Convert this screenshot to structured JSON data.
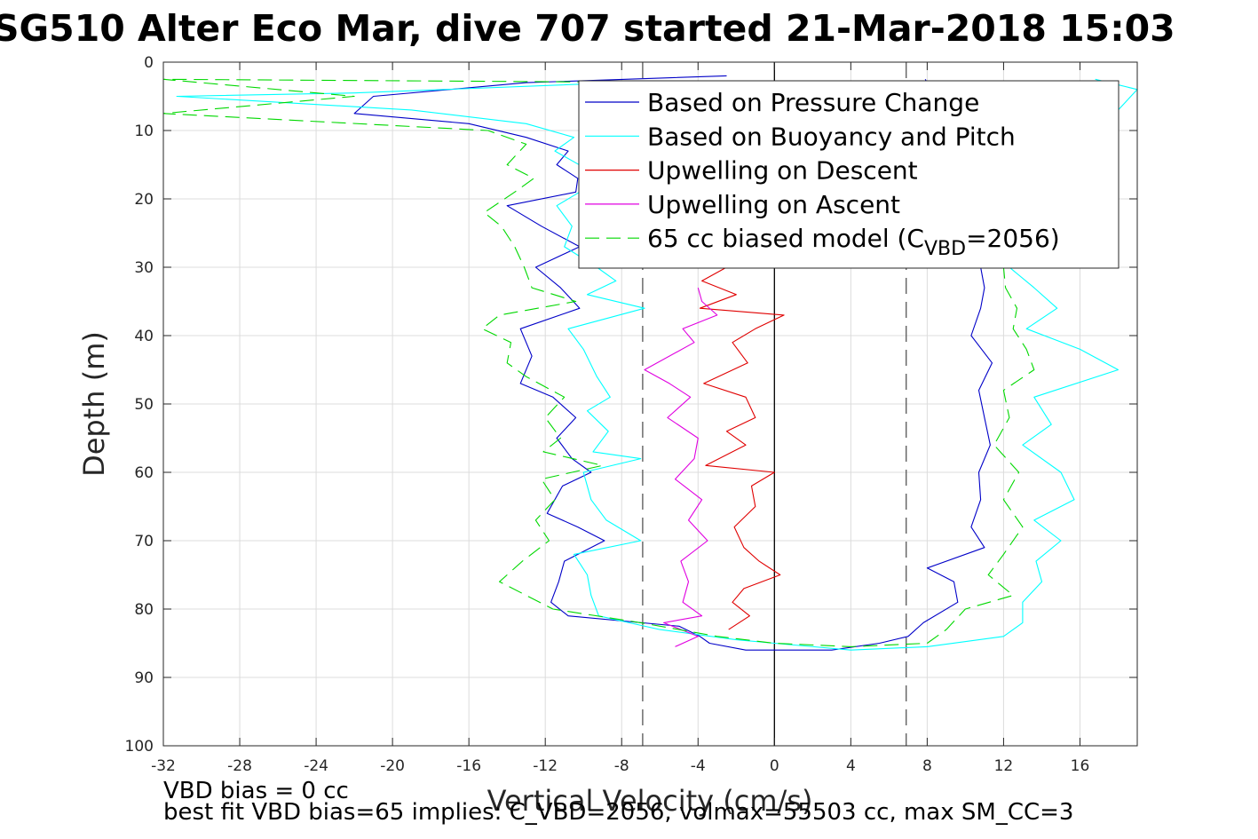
{
  "chart_data": {
    "type": "line",
    "title": "SG510 Alter Eco Mar, dive 707 started 21-Mar-2018 15:03",
    "xlabel": "Vertical Velocity (cm/s)",
    "ylabel": "Depth (m)",
    "xlim": [
      -32,
      19
    ],
    "ylim": [
      0,
      100
    ],
    "y_reversed": true,
    "grid": true,
    "x_ticks": [
      -32,
      -28,
      -24,
      -20,
      -16,
      -12,
      -8,
      -4,
      0,
      4,
      8,
      12,
      16
    ],
    "y_ticks": [
      0,
      10,
      20,
      30,
      40,
      50,
      60,
      70,
      80,
      90,
      100
    ],
    "reference_lines": [
      {
        "type": "vertical-solid",
        "x": 0,
        "color": "#000000"
      },
      {
        "type": "vertical-dashed",
        "x": -6.9,
        "color": "#555555"
      },
      {
        "type": "vertical-dashed",
        "x": 6.9,
        "color": "#555555"
      }
    ],
    "legend": {
      "position": "top-right"
    },
    "series": [
      {
        "name": "Based on Pressure Change",
        "color": "#0000c8",
        "style": "solid",
        "points": [
          [
            -2.5,
            2
          ],
          [
            -13,
            3
          ],
          [
            -21,
            5
          ],
          [
            -22,
            7.5
          ],
          [
            -16,
            9
          ],
          [
            -13,
            11
          ],
          [
            -10.8,
            13
          ],
          [
            -11.4,
            15
          ],
          [
            -10.3,
            17
          ],
          [
            -10.4,
            19
          ],
          [
            -14,
            21
          ],
          [
            -12.2,
            24
          ],
          [
            -10.2,
            27
          ],
          [
            -12.5,
            30
          ],
          [
            -11.2,
            33
          ],
          [
            -10.2,
            36
          ],
          [
            -13.3,
            39
          ],
          [
            -12.7,
            43
          ],
          [
            -13.3,
            47
          ],
          [
            -11.6,
            49
          ],
          [
            -10.4,
            52
          ],
          [
            -11.4,
            55
          ],
          [
            -10.6,
            58
          ],
          [
            -9.6,
            60
          ],
          [
            -11.1,
            62
          ],
          [
            -11.9,
            66
          ],
          [
            -10.3,
            68
          ],
          [
            -8.9,
            70
          ],
          [
            -11,
            73
          ],
          [
            -11.3,
            76
          ],
          [
            -11.7,
            79
          ],
          [
            -10.8,
            81
          ],
          [
            -5,
            82.5
          ],
          [
            -3.9,
            84
          ],
          [
            -3.4,
            85
          ],
          [
            -1.5,
            86
          ],
          [
            3,
            86
          ],
          [
            5.5,
            85
          ],
          [
            7,
            84
          ],
          [
            7.8,
            82
          ],
          [
            9.6,
            79
          ],
          [
            9.4,
            76
          ],
          [
            8,
            74
          ],
          [
            11,
            71
          ],
          [
            10.3,
            68
          ],
          [
            10.8,
            64
          ],
          [
            10.7,
            60
          ],
          [
            11.3,
            56
          ],
          [
            11,
            52
          ],
          [
            10.7,
            48
          ],
          [
            11.4,
            44
          ],
          [
            10.3,
            40
          ],
          [
            10.8,
            36
          ],
          [
            11,
            33
          ],
          [
            10.8,
            30
          ],
          [
            10.5,
            25
          ],
          [
            10.8,
            20
          ],
          [
            9.7,
            15
          ],
          [
            8.5,
            10
          ],
          [
            8.4,
            5
          ],
          [
            7.9,
            2.5
          ]
        ]
      },
      {
        "name": "Based on Buoyancy and Pitch",
        "color": "#00ffff",
        "style": "solid",
        "points": [
          [
            -8,
            3
          ],
          [
            -22,
            4.5
          ],
          [
            -31.3,
            5
          ],
          [
            -19,
            7
          ],
          [
            -13,
            9
          ],
          [
            -10.5,
            11
          ],
          [
            -11.5,
            13
          ],
          [
            -9.6,
            16
          ],
          [
            -10.2,
            19
          ],
          [
            -11.4,
            21
          ],
          [
            -10.6,
            24
          ],
          [
            -11,
            27
          ],
          [
            -9.3,
            30
          ],
          [
            -8.3,
            32
          ],
          [
            -9.8,
            34
          ],
          [
            -6.8,
            36
          ],
          [
            -10.8,
            39
          ],
          [
            -10,
            42
          ],
          [
            -9.3,
            46
          ],
          [
            -8.6,
            49
          ],
          [
            -9.8,
            51
          ],
          [
            -8.7,
            54
          ],
          [
            -9.5,
            57
          ],
          [
            -7,
            58
          ],
          [
            -10,
            60
          ],
          [
            -9.6,
            64
          ],
          [
            -8.8,
            67
          ],
          [
            -7,
            70
          ],
          [
            -10.5,
            72
          ],
          [
            -9.8,
            75
          ],
          [
            -9.6,
            78
          ],
          [
            -9.2,
            81
          ],
          [
            -6,
            83
          ],
          [
            -2,
            84.5
          ],
          [
            0,
            85
          ],
          [
            4,
            86
          ],
          [
            8,
            85.5
          ],
          [
            12,
            84
          ],
          [
            13,
            82
          ],
          [
            13,
            79
          ],
          [
            14,
            76
          ],
          [
            13.7,
            73
          ],
          [
            15,
            70
          ],
          [
            13.6,
            67
          ],
          [
            15.7,
            64
          ],
          [
            15,
            60
          ],
          [
            13,
            56
          ],
          [
            14.5,
            53
          ],
          [
            13.6,
            49
          ],
          [
            18,
            45
          ],
          [
            16,
            42
          ],
          [
            13.2,
            39
          ],
          [
            14.8,
            36
          ],
          [
            13.6,
            33
          ],
          [
            12.3,
            30
          ],
          [
            14,
            25
          ],
          [
            15,
            20
          ],
          [
            14.7,
            15
          ],
          [
            17,
            10
          ],
          [
            19,
            4
          ],
          [
            16.8,
            2.5
          ]
        ]
      },
      {
        "name": "Upwelling on Descent",
        "color": "#e00000",
        "style": "solid",
        "points": [
          [
            -2.5,
            30
          ],
          [
            -3.8,
            32
          ],
          [
            -2,
            34
          ],
          [
            -3.9,
            36
          ],
          [
            0.5,
            37
          ],
          [
            -1,
            39
          ],
          [
            -2.2,
            41
          ],
          [
            -1.4,
            44
          ],
          [
            -3.7,
            47
          ],
          [
            -1.5,
            49
          ],
          [
            -1,
            52
          ],
          [
            -2.5,
            54
          ],
          [
            -1.5,
            56
          ],
          [
            -3.6,
            59
          ],
          [
            0,
            60
          ],
          [
            -1.2,
            62
          ],
          [
            -1,
            65
          ],
          [
            -2.1,
            68
          ],
          [
            -1.6,
            71
          ],
          [
            -0.8,
            73
          ],
          [
            0.3,
            75
          ],
          [
            -1.6,
            77
          ],
          [
            -2.2,
            79
          ],
          [
            -1.3,
            81
          ],
          [
            -2.4,
            83
          ]
        ]
      },
      {
        "name": "Upwelling on Ascent",
        "color": "#e000e0",
        "style": "solid",
        "points": [
          [
            -4,
            33
          ],
          [
            -3.8,
            35
          ],
          [
            -3,
            37
          ],
          [
            -4.8,
            39
          ],
          [
            -4.2,
            41
          ],
          [
            -6.8,
            45
          ],
          [
            -5.5,
            47
          ],
          [
            -4.4,
            49
          ],
          [
            -5.6,
            52
          ],
          [
            -4,
            55
          ],
          [
            -4.2,
            58
          ],
          [
            -5.2,
            61
          ],
          [
            -3.8,
            64
          ],
          [
            -4.5,
            67
          ],
          [
            -3.5,
            70
          ],
          [
            -4.9,
            73
          ],
          [
            -4.5,
            76
          ],
          [
            -4.8,
            79
          ],
          [
            -3.8,
            81
          ],
          [
            -5.8,
            82
          ],
          [
            -4,
            84
          ],
          [
            -5.2,
            85.5
          ]
        ]
      },
      {
        "name": "65 cc biased model (C",
        "legend_subscript": "VBD",
        "legend_suffix": "=2056)",
        "color": "#00d800",
        "style": "dashed",
        "points": [
          [
            -4,
            3
          ],
          [
            -32,
            2.5
          ],
          [
            -22,
            5
          ],
          [
            -32,
            7.5
          ],
          [
            -15,
            10
          ],
          [
            -13,
            12
          ],
          [
            -14,
            15
          ],
          [
            -12.6,
            17
          ],
          [
            -13.6,
            19
          ],
          [
            -15.2,
            22
          ],
          [
            -14.3,
            24
          ],
          [
            -13.6,
            27
          ],
          [
            -13.1,
            30
          ],
          [
            -12.7,
            33
          ],
          [
            -10.4,
            35
          ],
          [
            -14.4,
            37
          ],
          [
            -15.3,
            39
          ],
          [
            -13.8,
            41
          ],
          [
            -14,
            44
          ],
          [
            -13,
            46
          ],
          [
            -11,
            49
          ],
          [
            -12,
            52
          ],
          [
            -11.2,
            55
          ],
          [
            -12.1,
            57
          ],
          [
            -9,
            59
          ],
          [
            -12.2,
            61
          ],
          [
            -11.5,
            64
          ],
          [
            -12.5,
            67
          ],
          [
            -11.8,
            70
          ],
          [
            -13.2,
            73
          ],
          [
            -14.4,
            76
          ],
          [
            -13,
            78
          ],
          [
            -11.6,
            80
          ],
          [
            -7,
            82
          ],
          [
            -3,
            84
          ],
          [
            0,
            85
          ],
          [
            4,
            85.5
          ],
          [
            8,
            85
          ],
          [
            9,
            83
          ],
          [
            10,
            80
          ],
          [
            12.5,
            78
          ],
          [
            11.2,
            75
          ],
          [
            12,
            72
          ],
          [
            13,
            68
          ],
          [
            12,
            64
          ],
          [
            12.8,
            60
          ],
          [
            11.5,
            56
          ],
          [
            12.3,
            52
          ],
          [
            12,
            48
          ],
          [
            13.6,
            45
          ],
          [
            13.2,
            42
          ],
          [
            12.5,
            39
          ],
          [
            12.7,
            36
          ],
          [
            12.1,
            33
          ],
          [
            12,
            30
          ],
          [
            12.8,
            25
          ],
          [
            14,
            20
          ],
          [
            13.4,
            15
          ],
          [
            12,
            10
          ],
          [
            11.5,
            5
          ],
          [
            10.5,
            3
          ]
        ]
      }
    ]
  },
  "notes": {
    "line1": "VBD bias = 0 cc",
    "line2": "best fit VBD bias=65 implies: C_VBD=2056, volmax=55503 cc, max SM_CC=3"
  }
}
